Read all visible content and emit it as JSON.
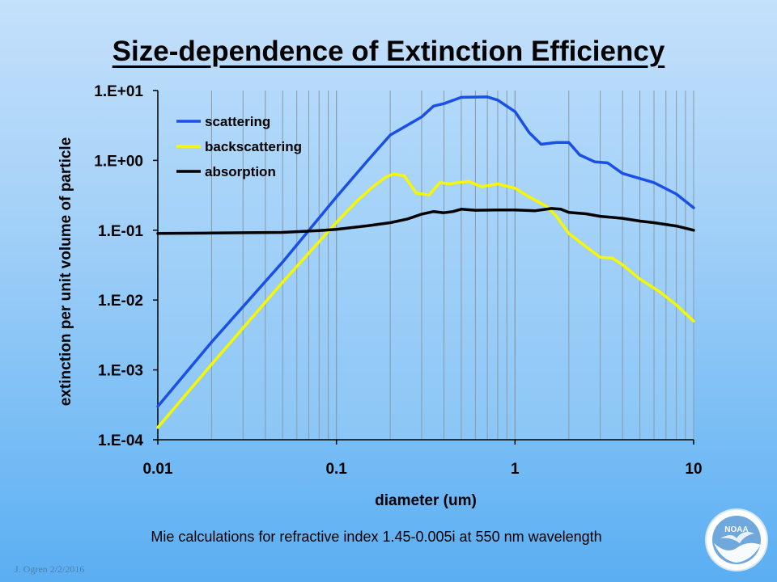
{
  "slide": {
    "title": "Size-dependence of Extinction Efficiency",
    "caption": "Mie calculations for refractive index 1.45-0.005i at 550 nm wavelength",
    "credit": "J. Ogren  2/2/2016",
    "logo_text": "NOAA"
  },
  "chart_data": {
    "type": "line",
    "xlabel": "diameter (um)",
    "ylabel": "extinction per unit volume of particle",
    "x_scale": "log",
    "y_scale": "log",
    "xlim": [
      0.01,
      10
    ],
    "ylim": [
      0.0001,
      10
    ],
    "x_ticks": [
      0.01,
      0.1,
      1,
      10
    ],
    "x_tick_labels": [
      "0.01",
      "0.1",
      "1",
      "10"
    ],
    "y_ticks": [
      10,
      1,
      0.1,
      0.01,
      0.001,
      0.0001
    ],
    "y_tick_labels": [
      "1.E+01",
      "1.E+00",
      "1.E-01",
      "1.E-02",
      "1.E-03",
      "1.E-04"
    ],
    "grid": "vertical minor gridlines",
    "legend_position": "top-left",
    "series": [
      {
        "name": "scattering",
        "color": "#1a4fe8",
        "points": [
          [
            0.01,
            0.0003
          ],
          [
            0.02,
            0.0025
          ],
          [
            0.05,
            0.035
          ],
          [
            0.1,
            0.3
          ],
          [
            0.15,
            1.0
          ],
          [
            0.2,
            2.3
          ],
          [
            0.3,
            4.2
          ],
          [
            0.35,
            6.0
          ],
          [
            0.4,
            6.5
          ],
          [
            0.5,
            8.0
          ],
          [
            0.7,
            8.1
          ],
          [
            0.8,
            7.3
          ],
          [
            1.0,
            5.0
          ],
          [
            1.2,
            2.5
          ],
          [
            1.4,
            1.7
          ],
          [
            1.7,
            1.8
          ],
          [
            2.0,
            1.8
          ],
          [
            2.3,
            1.2
          ],
          [
            2.8,
            0.95
          ],
          [
            3.3,
            0.92
          ],
          [
            4.0,
            0.65
          ],
          [
            5.0,
            0.55
          ],
          [
            6.0,
            0.48
          ],
          [
            8.0,
            0.33
          ],
          [
            10.0,
            0.21
          ]
        ]
      },
      {
        "name": "backscattering",
        "color": "#f7f700",
        "points": [
          [
            0.01,
            0.00015
          ],
          [
            0.02,
            0.0012
          ],
          [
            0.05,
            0.018
          ],
          [
            0.1,
            0.13
          ],
          [
            0.13,
            0.26
          ],
          [
            0.16,
            0.42
          ],
          [
            0.19,
            0.58
          ],
          [
            0.21,
            0.64
          ],
          [
            0.24,
            0.6
          ],
          [
            0.28,
            0.34
          ],
          [
            0.33,
            0.32
          ],
          [
            0.38,
            0.48
          ],
          [
            0.43,
            0.46
          ],
          [
            0.48,
            0.48
          ],
          [
            0.55,
            0.5
          ],
          [
            0.65,
            0.42
          ],
          [
            0.8,
            0.46
          ],
          [
            1.0,
            0.4
          ],
          [
            1.2,
            0.3
          ],
          [
            1.5,
            0.22
          ],
          [
            1.7,
            0.16
          ],
          [
            2.0,
            0.09
          ],
          [
            2.5,
            0.058
          ],
          [
            3.0,
            0.041
          ],
          [
            3.5,
            0.04
          ],
          [
            4.0,
            0.032
          ],
          [
            5.0,
            0.02
          ],
          [
            6.5,
            0.013
          ],
          [
            8.0,
            0.0085
          ],
          [
            10.0,
            0.005
          ]
        ]
      },
      {
        "name": "absorption",
        "color": "#000000",
        "points": [
          [
            0.01,
            0.09
          ],
          [
            0.02,
            0.091
          ],
          [
            0.05,
            0.093
          ],
          [
            0.08,
            0.099
          ],
          [
            0.1,
            0.103
          ],
          [
            0.15,
            0.116
          ],
          [
            0.2,
            0.128
          ],
          [
            0.25,
            0.145
          ],
          [
            0.3,
            0.17
          ],
          [
            0.35,
            0.185
          ],
          [
            0.4,
            0.178
          ],
          [
            0.45,
            0.185
          ],
          [
            0.5,
            0.2
          ],
          [
            0.6,
            0.193
          ],
          [
            0.8,
            0.195
          ],
          [
            1.0,
            0.195
          ],
          [
            1.3,
            0.19
          ],
          [
            1.6,
            0.205
          ],
          [
            1.8,
            0.2
          ],
          [
            2.0,
            0.18
          ],
          [
            2.5,
            0.172
          ],
          [
            3.0,
            0.158
          ],
          [
            4.0,
            0.148
          ],
          [
            5.0,
            0.135
          ],
          [
            6.0,
            0.128
          ],
          [
            8.0,
            0.115
          ],
          [
            10.0,
            0.1
          ]
        ]
      }
    ]
  }
}
